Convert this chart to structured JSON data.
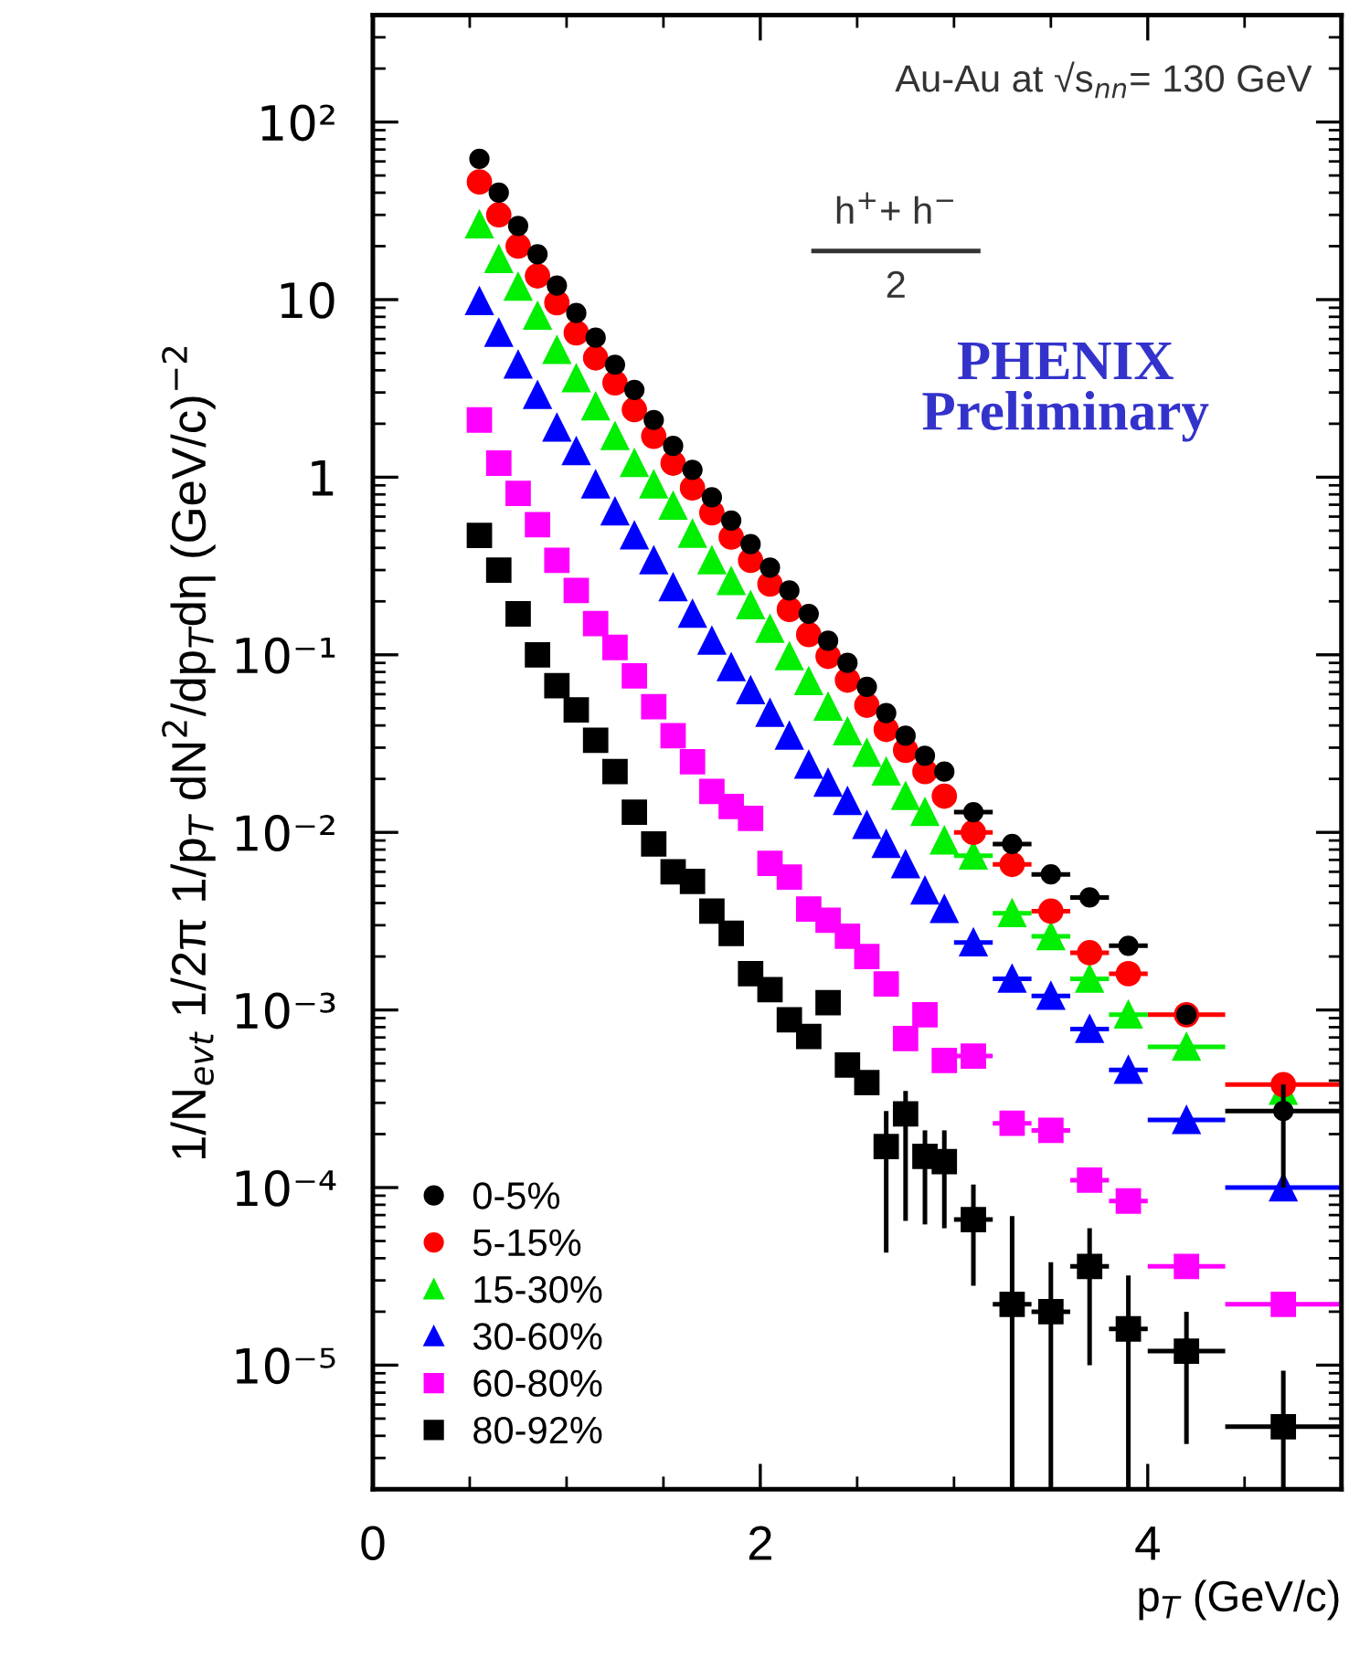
{
  "chart_data": {
    "type": "scatter",
    "xlabel": "p$_{T}$ (GeV/c)",
    "ylabel": "1/N$_{evt}$ 1/2π 1/p$_{T}$ dN$^{2}$/dp$_{T}$dη (GeV/c)$^{−2}$",
    "annotations": [
      "Au-Au at √s$_{nn}$= 130 GeV",
      "h$^{+}$+ h$^{−}$",
      "2",
      "PHENIX\nPreliminary"
    ],
    "x": [
      0.55,
      0.65,
      0.75,
      0.85,
      0.95,
      1.05,
      1.15,
      1.25,
      1.35,
      1.45,
      1.55,
      1.65,
      1.75,
      1.85,
      1.95,
      2.05,
      2.15,
      2.25,
      2.35,
      2.45,
      2.55,
      2.65,
      2.75,
      2.85,
      2.95,
      3.1,
      3.3,
      3.5,
      3.7,
      3.9,
      4.2,
      4.7
    ],
    "series": [
      {
        "name": "0-5%",
        "color": "#000000",
        "marker": "circle",
        "values": [
          62,
          40,
          26,
          18,
          12,
          8.4,
          6.1,
          4.3,
          3.1,
          2.1,
          1.5,
          1.1,
          0.77,
          0.57,
          0.42,
          0.31,
          0.23,
          0.17,
          0.12,
          0.09,
          0.066,
          0.047,
          0.035,
          0.027,
          0.022,
          0.013,
          0.0086,
          0.0058,
          0.0043,
          0.0023,
          0.00094,
          0.00027
        ],
        "xerrors": [
          null,
          null,
          null,
          null,
          null,
          null,
          null,
          null,
          null,
          null,
          null,
          null,
          null,
          null,
          null,
          null,
          null,
          null,
          null,
          null,
          null,
          null,
          null,
          null,
          null,
          0.1,
          0.1,
          0.1,
          0.1,
          0.1,
          null,
          0.3
        ],
        "errors": [
          null,
          null,
          null,
          null,
          null,
          null,
          null,
          null,
          null,
          null,
          null,
          null,
          null,
          null,
          null,
          null,
          null,
          null,
          null,
          null,
          null,
          null,
          null,
          null,
          null,
          null,
          null,
          null,
          null,
          null,
          null,
          [
            0.0001,
            0.00038
          ]
        ]
      },
      {
        "name": "5-15%",
        "color": "#ff0000",
        "marker": "circle",
        "values": [
          46,
          30,
          20,
          13.6,
          9.6,
          6.5,
          4.7,
          3.4,
          2.4,
          1.7,
          1.2,
          0.87,
          0.63,
          0.46,
          0.34,
          0.25,
          0.18,
          0.13,
          0.098,
          0.072,
          0.052,
          0.038,
          0.029,
          0.022,
          0.016,
          0.01,
          0.0066,
          0.0036,
          0.0021,
          0.0016,
          0.00094,
          0.00038
        ],
        "xerrors": [
          null,
          null,
          null,
          null,
          null,
          null,
          null,
          null,
          null,
          null,
          null,
          null,
          null,
          null,
          null,
          null,
          null,
          null,
          null,
          null,
          null,
          null,
          null,
          null,
          null,
          0.1,
          0.1,
          0.1,
          0.1,
          0.1,
          0.2,
          0.3
        ]
      },
      {
        "name": "15-30%",
        "color": "#00ee00",
        "marker": "triangle",
        "values": [
          26.5,
          16.9,
          11.8,
          8.1,
          5.2,
          3.6,
          2.5,
          1.7,
          1.2,
          0.91,
          0.69,
          0.48,
          0.34,
          0.26,
          0.19,
          0.14,
          0.098,
          0.071,
          0.051,
          0.037,
          0.028,
          0.022,
          0.016,
          0.013,
          0.009,
          0.0074,
          0.0035,
          0.0026,
          0.0015,
          0.00094,
          0.00062,
          0.00035
        ],
        "xerrors": [
          null,
          null,
          null,
          null,
          null,
          null,
          null,
          null,
          null,
          null,
          null,
          null,
          null,
          null,
          null,
          null,
          null,
          null,
          null,
          null,
          null,
          null,
          null,
          null,
          null,
          0.1,
          0.1,
          0.1,
          0.1,
          0.1,
          0.2,
          null
        ]
      },
      {
        "name": "30-60%",
        "color": "#0000ff",
        "marker": "triangle",
        "values": [
          9.8,
          6.5,
          4.3,
          2.9,
          1.9,
          1.4,
          0.91,
          0.64,
          0.47,
          0.34,
          0.24,
          0.17,
          0.12,
          0.085,
          0.063,
          0.047,
          0.035,
          0.024,
          0.019,
          0.015,
          0.011,
          0.0086,
          0.0066,
          0.0047,
          0.0037,
          0.0024,
          0.0015,
          0.0012,
          0.00078,
          0.00046,
          0.00024,
          0.0001
        ],
        "xerrors": [
          null,
          null,
          null,
          null,
          null,
          null,
          null,
          null,
          null,
          null,
          null,
          null,
          null,
          null,
          null,
          null,
          null,
          null,
          null,
          null,
          null,
          null,
          null,
          null,
          null,
          0.1,
          0.1,
          0.1,
          0.1,
          0.1,
          0.2,
          0.3
        ]
      },
      {
        "name": "60-80%",
        "color": "#ff00ff",
        "marker": "square",
        "values": [
          2.1,
          1.2,
          0.81,
          0.54,
          0.34,
          0.23,
          0.15,
          0.11,
          0.076,
          0.051,
          0.035,
          0.025,
          0.017,
          0.014,
          0.012,
          0.0067,
          0.0056,
          0.0037,
          0.0032,
          0.0026,
          0.002,
          0.0014,
          0.00069,
          0.00094,
          0.00052,
          0.00055,
          0.00023,
          0.00021,
          0.00011,
          8.4e-05,
          3.6e-05,
          2.2e-05
        ],
        "xerrors": [
          null,
          null,
          null,
          null,
          null,
          null,
          null,
          null,
          null,
          null,
          null,
          null,
          null,
          null,
          null,
          null,
          null,
          null,
          null,
          null,
          null,
          null,
          null,
          null,
          null,
          0.1,
          0.1,
          0.1,
          0.1,
          0.1,
          0.2,
          0.3
        ]
      },
      {
        "name": "80-92%",
        "color": "#000000",
        "marker": "square",
        "values": [
          0.47,
          0.3,
          0.17,
          0.1,
          0.067,
          0.049,
          0.033,
          0.022,
          0.013,
          0.0086,
          0.006,
          0.0053,
          0.0036,
          0.0027,
          0.0016,
          0.0013,
          0.00088,
          0.00071,
          0.0011,
          0.00049,
          0.00039,
          0.00017,
          0.00026,
          0.00015,
          0.00014,
          6.6e-05,
          2.2e-05,
          2e-05,
          3.6e-05,
          1.6e-05,
          1.2e-05,
          4.5e-06
        ],
        "xerrors": [
          null,
          null,
          null,
          null,
          null,
          null,
          null,
          null,
          null,
          null,
          null,
          null,
          null,
          null,
          null,
          null,
          null,
          null,
          null,
          null,
          null,
          null,
          null,
          null,
          null,
          0.1,
          0.1,
          0.1,
          0.1,
          0.1,
          0.2,
          0.3
        ],
        "errors": [
          null,
          null,
          null,
          null,
          null,
          null,
          null,
          null,
          null,
          null,
          null,
          null,
          null,
          null,
          null,
          null,
          null,
          null,
          null,
          null,
          null,
          [
            4.3e-05,
            0.00027
          ],
          [
            6.5e-05,
            0.00035
          ],
          [
            6.2e-05,
            0.00021
          ],
          [
            5.9e-05,
            0.00021
          ],
          [
            2.8e-05,
            0.000104
          ],
          [
            2e-06,
            6.9e-05
          ],
          [
            2e-06,
            3.8e-05
          ],
          [
            1e-05,
            5.9e-05
          ],
          [
            2e-06,
            3.2e-05
          ],
          [
            3.6e-06,
            2e-05
          ],
          [
            2e-06,
            9.3e-06
          ]
        ]
      }
    ],
    "xlim": [
      0,
      5
    ],
    "xticks": [
      0,
      2,
      4
    ],
    "log": "y",
    "ylim": [
      2e-06,
      400
    ],
    "yticks": [
      {
        "value": 100,
        "label": "10²"
      },
      10,
      1,
      {
        "value": 0.1,
        "label": "10⁻¹"
      },
      {
        "value": 0.01,
        "label": "10⁻²"
      },
      {
        "value": 0.001,
        "label": "10⁻³"
      },
      {
        "value": 0.0001,
        "label": "10⁻⁴"
      },
      {
        "value": 1e-05,
        "label": "10⁻⁵"
      }
    ],
    "legend": "bottom left",
    "grid": false
  }
}
